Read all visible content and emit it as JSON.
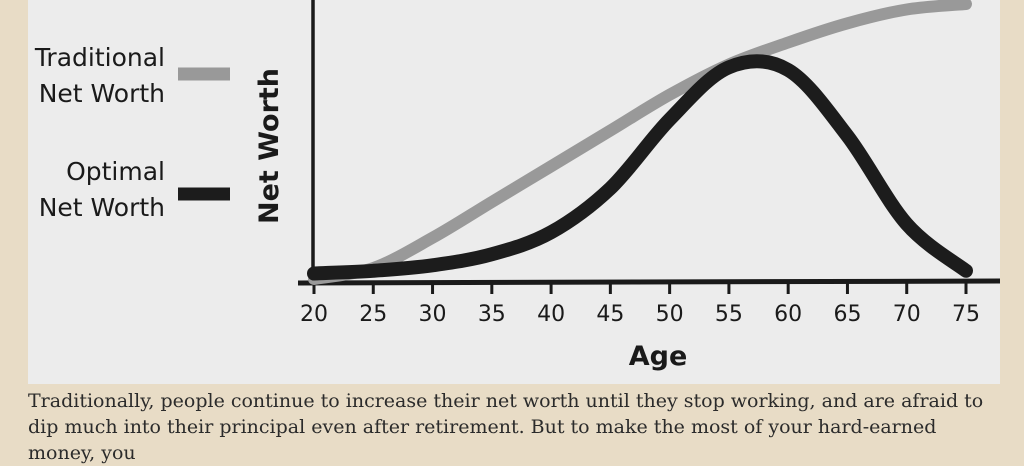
{
  "chart_data": {
    "type": "line",
    "xlabel": "Age",
    "ylabel": "Net Worth",
    "xlim": [
      20,
      75
    ],
    "x_ticks": [
      20,
      25,
      30,
      35,
      40,
      45,
      50,
      55,
      60,
      65,
      70,
      75
    ],
    "ylim": [
      0,
      100
    ],
    "grid": false,
    "legend_position": "left",
    "series": [
      {
        "name": "Traditional Net Worth",
        "color": "#999999",
        "x": [
          20,
          25,
          30,
          35,
          40,
          45,
          50,
          55,
          60,
          65,
          70,
          75
        ],
        "values": [
          0,
          4,
          15,
          28,
          41,
          54,
          67,
          78,
          86,
          93,
          98,
          100
        ]
      },
      {
        "name": "Optimal Net Worth",
        "color": "#1c1c1c",
        "x": [
          20,
          25,
          30,
          35,
          40,
          45,
          50,
          55,
          60,
          65,
          70,
          75
        ],
        "values": [
          2,
          3,
          5,
          9,
          17,
          33,
          58,
          77,
          76,
          52,
          20,
          3
        ]
      }
    ]
  },
  "legend": {
    "traditional_line1": "Traditional",
    "traditional_line2": "Net Worth",
    "optimal_line1": "Optimal",
    "optimal_line2": "Net Worth"
  },
  "caption": {
    "text": "Traditionally, people continue to increase their net worth until they stop working, and are afraid to dip much into their principal even after retirement. But to make the most of your hard-earned money, you"
  }
}
